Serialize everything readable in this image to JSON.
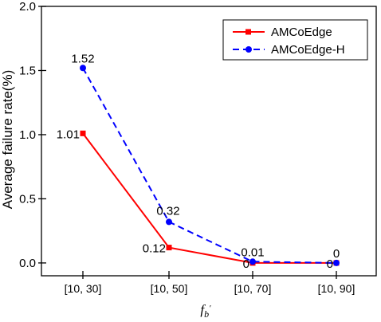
{
  "chart_data": {
    "type": "line",
    "categories": [
      "[10, 30]",
      "[10, 50]",
      "[10, 70]",
      "[10, 90]"
    ],
    "series": [
      {
        "name": "AMCoEdge",
        "values": [
          1.01,
          0.12,
          0,
          0
        ],
        "labels": [
          "1.01",
          "0.12",
          "0",
          "0"
        ],
        "color": "#ff0000",
        "line_style": "solid",
        "marker": "square"
      },
      {
        "name": "AMCoEdge-H",
        "values": [
          1.52,
          0.32,
          0.01,
          0
        ],
        "labels": [
          "1.52",
          "0.32",
          "0.01",
          "0"
        ],
        "color": "#0000ff",
        "line_style": "dashed",
        "marker": "circle"
      }
    ],
    "title": "",
    "xlabel": {
      "base": "f",
      "sub": "b",
      "prime": "′"
    },
    "ylabel": "Average failure rate(%)",
    "ylim": [
      -0.1,
      2.0
    ],
    "yticks": [
      "0.0",
      "0.5",
      "1.0",
      "1.5",
      "2.0"
    ],
    "grid": false,
    "legend_position": "top-right"
  }
}
